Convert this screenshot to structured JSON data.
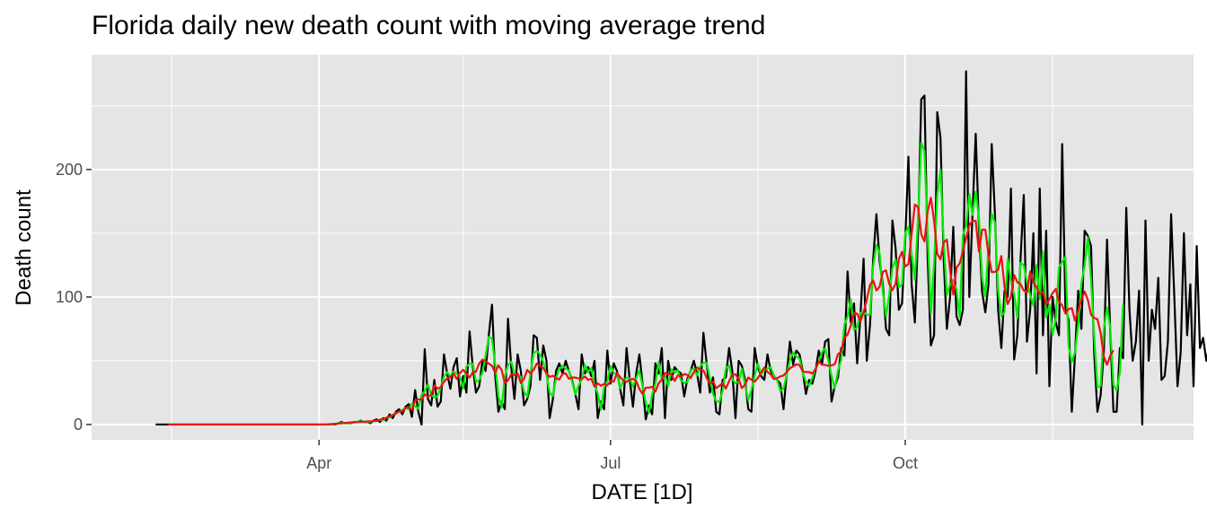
{
  "chart_data": {
    "type": "line",
    "title": "Florida daily new death count with moving average trend",
    "xlabel": "DATE [1D]",
    "ylabel": "Death count",
    "x_start": "2020-02-10",
    "x_end": "2020-12-12",
    "xlim": [
      "2020-01-21",
      "2020-12-30"
    ],
    "ylim": [
      -12,
      290
    ],
    "y_ticks": [
      0,
      100,
      200
    ],
    "y_minor_ticks": [
      50,
      150,
      250
    ],
    "x_ticks": [
      {
        "label": "Apr",
        "date": "2020-04-01"
      },
      {
        "label": "Jul",
        "date": "2020-07-01"
      },
      {
        "label": "Oct",
        "date": "2020-10-01"
      }
    ],
    "x_minor_ticks": [
      "2020-02-15",
      "2020-05-16",
      "2020-08-16",
      "2020-11-16"
    ],
    "panel_background": "#e5e5e5",
    "grid": true,
    "series": [
      {
        "color": "#000000",
        "values": [
          0,
          0,
          0,
          0,
          0,
          0,
          0,
          0,
          0,
          0,
          0,
          0,
          0,
          0,
          0,
          0,
          0,
          0,
          0,
          0,
          0,
          0,
          0,
          0,
          0,
          0,
          0,
          0,
          0,
          0,
          0,
          0,
          0,
          0,
          0,
          0,
          0,
          0,
          0,
          0,
          0,
          0,
          0,
          0,
          0,
          0,
          0,
          0,
          0,
          0,
          0,
          0,
          0,
          0,
          0,
          0,
          0,
          1,
          2,
          1,
          1,
          1,
          2,
          2,
          3,
          2,
          2,
          1,
          3,
          4,
          2,
          5,
          3,
          8,
          5,
          10,
          12,
          8,
          14,
          16,
          6,
          27,
          10,
          0,
          59,
          20,
          15,
          35,
          14,
          18,
          55,
          40,
          28,
          45,
          52,
          22,
          38,
          25,
          73,
          45,
          25,
          30,
          50,
          42,
          70,
          94,
          38,
          10,
          18,
          12,
          83,
          45,
          20,
          55,
          42,
          15,
          20,
          30,
          70,
          68,
          35,
          62,
          50,
          5,
          20,
          42,
          48,
          40,
          50,
          42,
          35,
          24,
          12,
          55,
          40,
          45,
          38,
          50,
          5,
          18,
          12,
          58,
          32,
          48,
          42,
          28,
          15,
          60,
          35,
          14,
          40,
          55,
          32,
          4,
          15,
          8,
          48,
          40,
          60,
          5,
          50,
          35,
          45,
          42,
          40,
          22,
          36,
          42,
          50,
          40,
          25,
          72,
          48,
          25,
          37,
          10,
          8,
          35,
          37,
          60,
          42,
          5,
          50,
          46,
          35,
          12,
          10,
          60,
          45,
          38,
          35,
          55,
          42,
          38,
          35,
          32,
          12,
          40,
          65,
          47,
          58,
          55,
          42,
          24,
          35,
          32,
          42,
          58,
          47,
          65,
          67,
          18,
          30,
          37,
          60,
          54,
          120,
          80,
          95,
          48,
          85,
          130,
          50,
          78,
          130,
          165,
          128,
          110,
          75,
          70,
          160,
          138,
          90,
          95,
          145,
          210,
          110,
          80,
          150,
          255,
          258,
          130,
          62,
          70,
          245,
          225,
          130,
          75,
          100,
          155,
          85,
          78,
          90,
          277,
          100,
          165,
          228,
          155,
          104,
          88,
          110,
          220,
          165,
          90,
          60,
          105,
          100,
          185,
          51,
          70,
          130,
          180,
          65,
          90,
          150,
          40,
          185,
          70,
          152,
          30,
          100,
          80,
          70,
          220,
          92,
          82,
          10,
          55,
          105,
          75,
          152,
          148,
          140,
          55,
          10,
          23,
          57,
          145,
          73,
          10,
          10,
          60,
          52,
          170,
          90,
          50,
          65,
          105,
          0,
          160,
          50,
          90,
          75,
          115,
          35,
          38,
          65,
          165,
          100,
          30,
          57,
          150,
          70,
          110,
          30,
          140,
          60,
          68,
          50,
          62,
          62,
          42,
          13,
          40,
          15,
          60,
          68,
          70,
          68,
          62,
          35,
          40,
          60,
          40,
          45,
          38,
          48,
          48,
          55,
          60,
          55,
          87,
          22,
          60,
          70,
          50,
          72,
          42,
          30,
          57,
          28,
          35,
          55,
          84,
          85,
          80,
          45,
          42,
          28,
          45,
          85,
          70,
          58,
          88,
          75,
          78,
          0,
          115,
          90,
          60,
          96,
          77,
          120,
          88,
          86,
          95,
          120,
          86,
          128,
          124
        ]
      },
      {
        "color": "#00ee00",
        "values": [
          0,
          0,
          0,
          0,
          0,
          0,
          0,
          0,
          0,
          0,
          0,
          0,
          0,
          0,
          0,
          0,
          0,
          0,
          0,
          0,
          0,
          0,
          0,
          0,
          0,
          0,
          0,
          0,
          0,
          0,
          0,
          0,
          0,
          0,
          0,
          0,
          0,
          0,
          0,
          0,
          0,
          0,
          0,
          0,
          0,
          0,
          0,
          0,
          0,
          0,
          0,
          0,
          0,
          0,
          0,
          0,
          0,
          1,
          2,
          1,
          1,
          1,
          2,
          2,
          3,
          2,
          2,
          1,
          3,
          4,
          2,
          5,
          3,
          8,
          5,
          10,
          12,
          8,
          14,
          16,
          6,
          27,
          10,
          0,
          59,
          20,
          15,
          35,
          14,
          18,
          55,
          40,
          28,
          45,
          52,
          22,
          38,
          25,
          73,
          45,
          25,
          30,
          50,
          42,
          70,
          94,
          38,
          10,
          18,
          12,
          83,
          45,
          20,
          55,
          42,
          15,
          20,
          30,
          70,
          68,
          35,
          62,
          50,
          5,
          20,
          42,
          48,
          40,
          50,
          42,
          35,
          24,
          12,
          55,
          40,
          45,
          38,
          50,
          5,
          18,
          12,
          58,
          32,
          48,
          42,
          28,
          15,
          60,
          35,
          14,
          40,
          55,
          32,
          4,
          15,
          8,
          48,
          40,
          60,
          5,
          50,
          35,
          45,
          42,
          40,
          22,
          36,
          42,
          50,
          40,
          25,
          72,
          48,
          25,
          37,
          10,
          8,
          35,
          37,
          60,
          42,
          5,
          50,
          46,
          35,
          12,
          10,
          60,
          45,
          38,
          35,
          55,
          42,
          38,
          35,
          32,
          12,
          40,
          65,
          47,
          58,
          55,
          42,
          24,
          35,
          32,
          42,
          58,
          47,
          65,
          67,
          18,
          30,
          37,
          60,
          54,
          120,
          80,
          95,
          48,
          85,
          130,
          50,
          78,
          130,
          165,
          128,
          110,
          75,
          70,
          160,
          138,
          90,
          95,
          145,
          210,
          110,
          80,
          150,
          255,
          258,
          130,
          62,
          70,
          245,
          225,
          130,
          75,
          100,
          155,
          85,
          78,
          90,
          277,
          100,
          165,
          228,
          155,
          104,
          88,
          110,
          220,
          165,
          90,
          60,
          105,
          100,
          185,
          51,
          70,
          130,
          180,
          65,
          90,
          150,
          40,
          185,
          70,
          152,
          30,
          100,
          80,
          70,
          220,
          92,
          82,
          10,
          55,
          105,
          75,
          152,
          148,
          140,
          55,
          10,
          23,
          57,
          145,
          73,
          10,
          10,
          60,
          52,
          170,
          90,
          50,
          65,
          105,
          0,
          160,
          50,
          90,
          75,
          115,
          35,
          38,
          65,
          165,
          100,
          30,
          57,
          150,
          70,
          110,
          30,
          140,
          60,
          68,
          50,
          62,
          62,
          42,
          13,
          40,
          15,
          60,
          68,
          70,
          68,
          62,
          35,
          40,
          60,
          40,
          45,
          38,
          48,
          48,
          55,
          60,
          55,
          87,
          22,
          60,
          70,
          50,
          72,
          42,
          30,
          57,
          28,
          35,
          55,
          84,
          85,
          80,
          45,
          42,
          28,
          45,
          85,
          70,
          58,
          88,
          75,
          78,
          0,
          115,
          90,
          60,
          96,
          77,
          120,
          88,
          86,
          95,
          120,
          86,
          128,
          124
        ],
        "smoothing_window_days": 3,
        "start": "2020-02-14",
        "end": "2020-12-08"
      },
      {
        "color": "#ee1111",
        "values": [
          0,
          0,
          0,
          0,
          0,
          0,
          0,
          0,
          0,
          0,
          0,
          0,
          0,
          0,
          0,
          0,
          0,
          0,
          0,
          0,
          0,
          0,
          0,
          0,
          0,
          0,
          0,
          0,
          0,
          0,
          0,
          0,
          0,
          0,
          0,
          0,
          0,
          0,
          0,
          0,
          0,
          0,
          0,
          0,
          0,
          0,
          0,
          0,
          0,
          0,
          0,
          0,
          0,
          0,
          0,
          0,
          0,
          1,
          2,
          1,
          1,
          1,
          2,
          2,
          3,
          2,
          2,
          1,
          3,
          4,
          2,
          5,
          3,
          8,
          5,
          10,
          12,
          8,
          14,
          16,
          6,
          27,
          10,
          0,
          59,
          20,
          15,
          35,
          14,
          18,
          55,
          40,
          28,
          45,
          52,
          22,
          38,
          25,
          73,
          45,
          25,
          30,
          50,
          42,
          70,
          94,
          38,
          10,
          18,
          12,
          83,
          45,
          20,
          55,
          42,
          15,
          20,
          30,
          70,
          68,
          35,
          62,
          50,
          5,
          20,
          42,
          48,
          40,
          50,
          42,
          35,
          24,
          12,
          55,
          40,
          45,
          38,
          50,
          5,
          18,
          12,
          58,
          32,
          48,
          42,
          28,
          15,
          60,
          35,
          14,
          40,
          55,
          32,
          4,
          15,
          8,
          48,
          40,
          60,
          5,
          50,
          35,
          45,
          42,
          40,
          22,
          36,
          42,
          50,
          40,
          25,
          72,
          48,
          25,
          37,
          10,
          8,
          35,
          37,
          60,
          42,
          5,
          50,
          46,
          35,
          12,
          10,
          60,
          45,
          38,
          35,
          55,
          42,
          38,
          35,
          32,
          12,
          40,
          65,
          47,
          58,
          55,
          42,
          24,
          35,
          32,
          42,
          58,
          47,
          65,
          67,
          18,
          30,
          37,
          60,
          54,
          120,
          80,
          95,
          48,
          85,
          130,
          50,
          78,
          130,
          165,
          128,
          110,
          75,
          70,
          160,
          138,
          90,
          95,
          145,
          210,
          110,
          80,
          150,
          255,
          258,
          130,
          62,
          70,
          245,
          225,
          130,
          75,
          100,
          155,
          85,
          78,
          90,
          277,
          100,
          165,
          228,
          155,
          104,
          88,
          110,
          220,
          165,
          90,
          60,
          105,
          100,
          185,
          51,
          70,
          130,
          180,
          65,
          90,
          150,
          40,
          185,
          70,
          152,
          30,
          100,
          80,
          70,
          220,
          92,
          82,
          10,
          55,
          105,
          75,
          152,
          148,
          140,
          55,
          10,
          23,
          57,
          145,
          73,
          10,
          10,
          60,
          52,
          170,
          90,
          50,
          65,
          105,
          0,
          160,
          50,
          90,
          75,
          115,
          35,
          38,
          65,
          165,
          100,
          30,
          57,
          150,
          70,
          110,
          30,
          140,
          60,
          68,
          50,
          62,
          62,
          42,
          13,
          40,
          15,
          60,
          68,
          70,
          68,
          62,
          35,
          40,
          60,
          40,
          45,
          38,
          48,
          48,
          55,
          60,
          55,
          87,
          22,
          60,
          70,
          50,
          72,
          42,
          30,
          57,
          28,
          35,
          55,
          84,
          85,
          80,
          45,
          42,
          28,
          45,
          85,
          70,
          58,
          88,
          75,
          78,
          0,
          115,
          90,
          60,
          96,
          77,
          120,
          88,
          86,
          95,
          120,
          86,
          128,
          124
        ],
        "smoothing_window_days": 7,
        "start": "2020-02-14",
        "end": "2020-12-05"
      }
    ]
  }
}
